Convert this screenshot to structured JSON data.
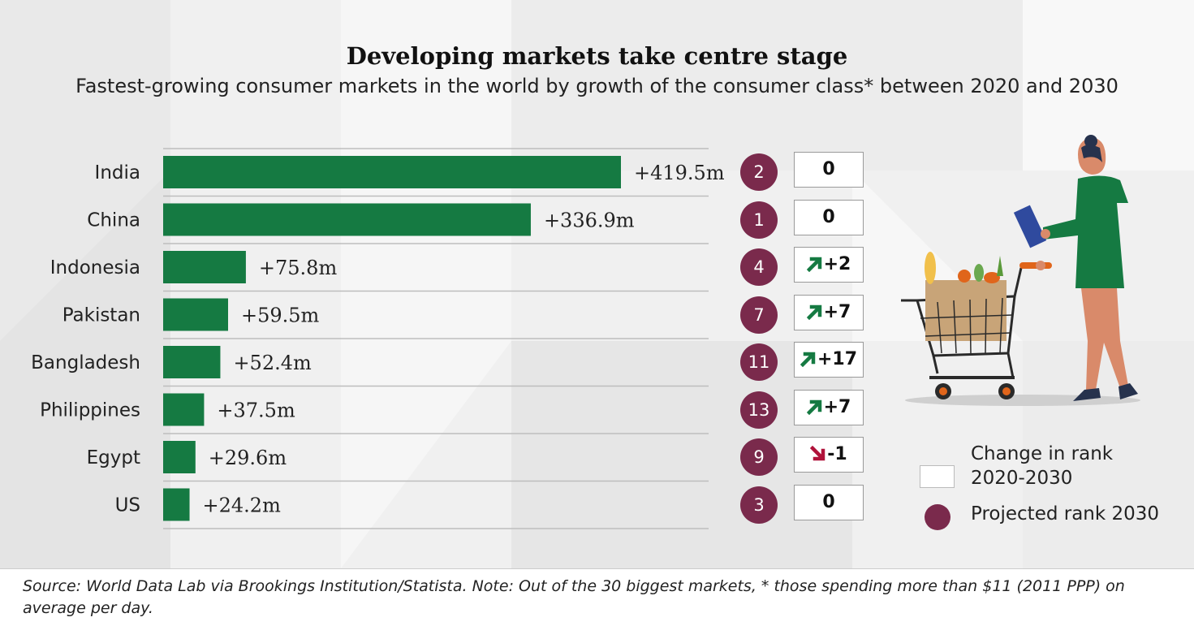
{
  "title": "Developing markets take centre stage",
  "subtitle": "Fastest-growing consumer markets in the world by growth of the consumer class* between 2020 and 2030",
  "chart_data": {
    "type": "bar",
    "orientation": "horizontal",
    "categories": [
      "India",
      "China",
      "Indonesia",
      "Pakistan",
      "Bangladesh",
      "Philippines",
      "Egypt",
      "US"
    ],
    "values": [
      419.5,
      336.9,
      75.8,
      59.5,
      52.4,
      37.5,
      29.6,
      24.2
    ],
    "value_labels": [
      "+419.5m",
      "+336.9m",
      "+75.8m",
      "+59.5m",
      "+52.4m",
      "+37.5m",
      "+29.6m",
      "+24.2m"
    ],
    "unit": "m",
    "bar_color": "#157a42",
    "projected_rank_2030": [
      "2",
      "1",
      "4",
      "7",
      "11",
      "13",
      "9",
      "3"
    ],
    "rank_change": [
      {
        "text": "0",
        "direction": "none"
      },
      {
        "text": "0",
        "direction": "none"
      },
      {
        "text": "+2",
        "direction": "up"
      },
      {
        "text": "+7",
        "direction": "up"
      },
      {
        "text": "+17",
        "direction": "up"
      },
      {
        "text": "+7",
        "direction": "up"
      },
      {
        "text": "-1",
        "direction": "down"
      },
      {
        "text": "0",
        "direction": "none"
      }
    ],
    "grid": false
  },
  "legend": {
    "change_label": "Change in rank 2020-2030",
    "rank_label": "Projected rank 2030"
  },
  "colors": {
    "bar": "#157a42",
    "rank_circle": "#7a2a4c",
    "arrow_up": "#157a42",
    "arrow_down": "#b0123a"
  },
  "source": "Source: World Data Lab via Brookings Institution/Statista. Note: Out of the 30 biggest markets, * those spending more than $11 (2011 PPP) on average per day."
}
